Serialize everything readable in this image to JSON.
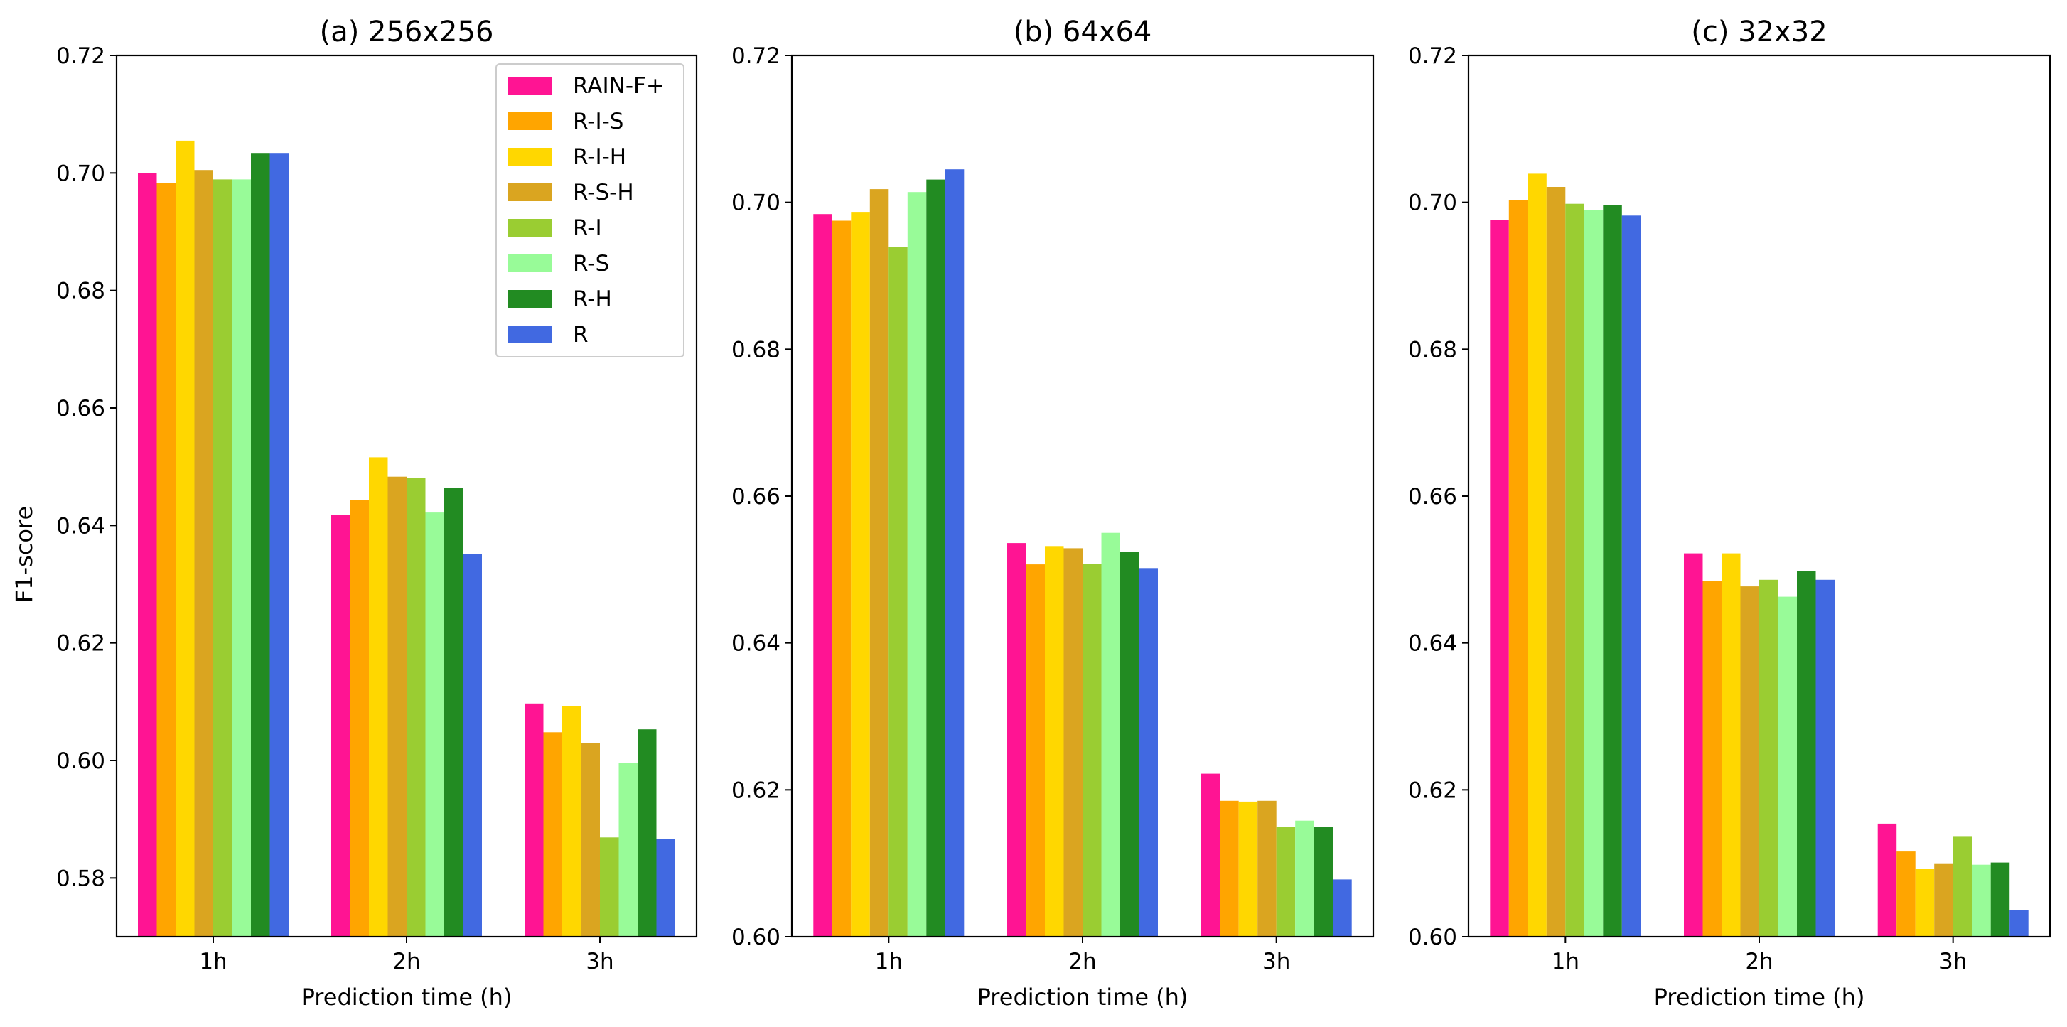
{
  "figure": {
    "y_axis_label": "F1-score",
    "x_axis_label": "Prediction time (h)"
  },
  "legend": {
    "items": [
      "RAIN-F+",
      "R-I-S",
      "R-I-H",
      "R-S-H",
      "R-I",
      "R-S",
      "R-H",
      "R"
    ],
    "location": "top-right of first panel"
  },
  "colors": {
    "RAIN-F+": "#FF1493",
    "R-I-S": "#FFA500",
    "R-I-H": "#FFD700",
    "R-S-H": "#DAA520",
    "R-I": "#9ACD32",
    "R-S": "#98FB98",
    "R-H": "#228B22",
    "R": "#4169E1"
  },
  "chart_data": [
    {
      "type": "bar",
      "title": "(a) 256x256",
      "xlabel": "Prediction time (h)",
      "ylabel": "F1-score",
      "categories": [
        "1h",
        "2h",
        "3h"
      ],
      "ylim": [
        0.57,
        0.72
      ],
      "yticks": [
        "0.58",
        "0.60",
        "0.62",
        "0.64",
        "0.66",
        "0.68",
        "0.70",
        "0.72"
      ],
      "series": [
        {
          "name": "RAIN-F+",
          "values": [
            0.7,
            0.6418,
            0.6097
          ]
        },
        {
          "name": "R-I-S",
          "values": [
            0.6983,
            0.6443,
            0.6048
          ]
        },
        {
          "name": "R-I-H",
          "values": [
            0.7055,
            0.6516,
            0.6093
          ]
        },
        {
          "name": "R-S-H",
          "values": [
            0.7005,
            0.6483,
            0.6029
          ]
        },
        {
          "name": "R-I",
          "values": [
            0.6989,
            0.6481,
            0.5869
          ]
        },
        {
          "name": "R-S",
          "values": [
            0.6989,
            0.6422,
            0.5996
          ]
        },
        {
          "name": "R-H",
          "values": [
            0.7034,
            0.6464,
            0.6053
          ]
        },
        {
          "name": "R",
          "values": [
            0.7034,
            0.6352,
            0.5866
          ]
        }
      ]
    },
    {
      "type": "bar",
      "title": "(b) 64x64",
      "xlabel": "Prediction time (h)",
      "ylabel": "",
      "categories": [
        "1h",
        "2h",
        "3h"
      ],
      "ylim": [
        0.6,
        0.72
      ],
      "yticks": [
        "0.60",
        "0.62",
        "0.64",
        "0.66",
        "0.68",
        "0.70",
        "0.72"
      ],
      "series": [
        {
          "name": "RAIN-F+",
          "values": [
            0.6984,
            0.6536,
            0.6222
          ]
        },
        {
          "name": "R-I-S",
          "values": [
            0.6975,
            0.6507,
            0.6185
          ]
        },
        {
          "name": "R-I-H",
          "values": [
            0.6987,
            0.6532,
            0.6184
          ]
        },
        {
          "name": "R-S-H",
          "values": [
            0.7018,
            0.6529,
            0.6185
          ]
        },
        {
          "name": "R-I",
          "values": [
            0.6939,
            0.6508,
            0.6149
          ]
        },
        {
          "name": "R-S",
          "values": [
            0.7014,
            0.655,
            0.6158
          ]
        },
        {
          "name": "R-H",
          "values": [
            0.7031,
            0.6524,
            0.6149
          ]
        },
        {
          "name": "R",
          "values": [
            0.7045,
            0.6502,
            0.6078
          ]
        }
      ]
    },
    {
      "type": "bar",
      "title": "(c) 32x32",
      "xlabel": "Prediction time (h)",
      "ylabel": "",
      "categories": [
        "1h",
        "2h",
        "3h"
      ],
      "ylim": [
        0.6,
        0.72
      ],
      "yticks": [
        "0.60",
        "0.62",
        "0.64",
        "0.66",
        "0.68",
        "0.70",
        "0.72"
      ],
      "series": [
        {
          "name": "RAIN-F+",
          "values": [
            0.6976,
            0.6522,
            0.6154
          ]
        },
        {
          "name": "R-I-S",
          "values": [
            0.7003,
            0.6484,
            0.6116
          ]
        },
        {
          "name": "R-I-H",
          "values": [
            0.7039,
            0.6522,
            0.6092
          ]
        },
        {
          "name": "R-S-H",
          "values": [
            0.7021,
            0.6477,
            0.61
          ]
        },
        {
          "name": "R-I",
          "values": [
            0.6998,
            0.6486,
            0.6137
          ]
        },
        {
          "name": "R-S",
          "values": [
            0.6989,
            0.6463,
            0.6098
          ]
        },
        {
          "name": "R-H",
          "values": [
            0.6996,
            0.6498,
            0.6101
          ]
        },
        {
          "name": "R",
          "values": [
            0.6982,
            0.6486,
            0.6036
          ]
        }
      ]
    }
  ]
}
